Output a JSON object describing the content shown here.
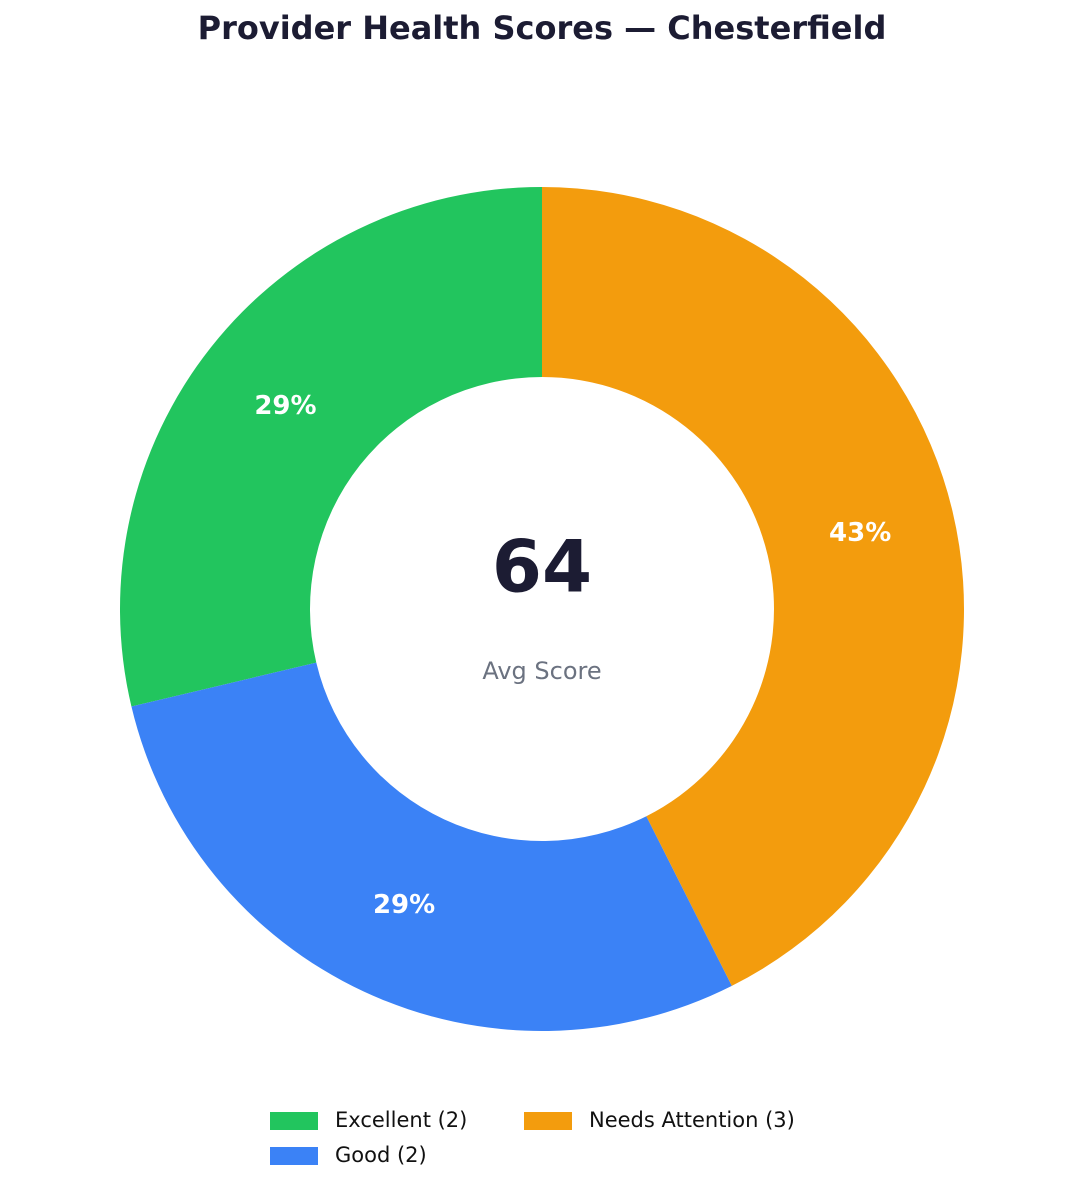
{
  "chart_data": {
    "type": "donut",
    "title": "Provider Health Scores — Chesterfield",
    "categories": [
      "Excellent (2)",
      "Good (2)",
      "Needs Attention (3)"
    ],
    "values": [
      29,
      29,
      43
    ],
    "value_labels": [
      "29%",
      "29%",
      "43%"
    ],
    "colors": [
      "#22c55e",
      "#3b82f6",
      "#f39c0d"
    ],
    "center_value": 64,
    "center_label": "Avg Score"
  }
}
